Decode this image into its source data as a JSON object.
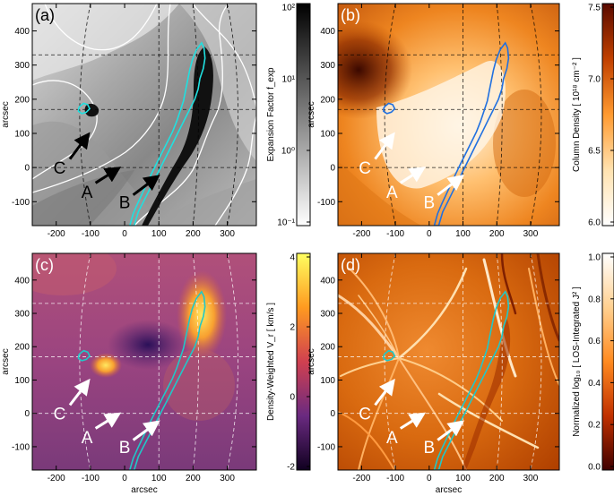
{
  "panels": [
    {
      "id": "a",
      "label": "(a)",
      "label_color": "#000000",
      "xlabel": "",
      "ylabel": "arcsec",
      "colorbar": {
        "title": "Expansion Factor  f_exp",
        "ticks": [
          "10²",
          "10¹",
          "10⁰",
          "10⁻¹"
        ],
        "colors": [
          "#000000",
          "#ffffff"
        ],
        "scale": "log"
      }
    },
    {
      "id": "b",
      "label": "(b)",
      "label_color": "#ffffff",
      "xlabel": "",
      "ylabel": "arcsec",
      "colorbar": {
        "title": "Column Density  [ 10¹⁸ cm⁻² ]",
        "ticks": [
          "7.5",
          "7.0",
          "6.5",
          "6.0"
        ],
        "colors": [
          "#5a0a00",
          "#c04000",
          "#ff9a30",
          "#ffe2b0",
          "#ffffff"
        ],
        "scale": "linear"
      }
    },
    {
      "id": "c",
      "label": "(c)",
      "label_color": "#ffffff",
      "xlabel": "arcsec",
      "ylabel": "arcsec",
      "colorbar": {
        "title": "Density-Weighted V_r  [ km/s ]",
        "ticks": [
          "4",
          "2",
          "0",
          "-2"
        ],
        "colors": [
          "#ffff60",
          "#ff9a20",
          "#d04050",
          "#6a2a80",
          "#100020"
        ],
        "scale": "linear"
      }
    },
    {
      "id": "d",
      "label": "(d)",
      "label_color": "#ffffff",
      "xlabel": "arcsec",
      "ylabel": "arcsec",
      "colorbar": {
        "title": "Normalized  log₁₀ [ LOS-Integrated  J² ]",
        "ticks": [
          "1.0",
          "0.8",
          "0.6",
          "0.4",
          "0.2",
          "0.0"
        ],
        "colors": [
          "#ffffff",
          "#ffd090",
          "#ff8a20",
          "#c03000",
          "#400000"
        ],
        "scale": "linear"
      }
    }
  ],
  "axes": {
    "x_ticks": [
      "-200",
      "-100",
      "0",
      "100",
      "200",
      "300"
    ],
    "y_ticks": [
      "400",
      "300",
      "200",
      "100",
      "0",
      "-100"
    ]
  },
  "arrows": [
    "A",
    "B",
    "C"
  ],
  "contour_colors": {
    "a": "#20e0e0",
    "b": "#2070e0",
    "c": "#20c8c8",
    "d": "#20c8c8"
  }
}
